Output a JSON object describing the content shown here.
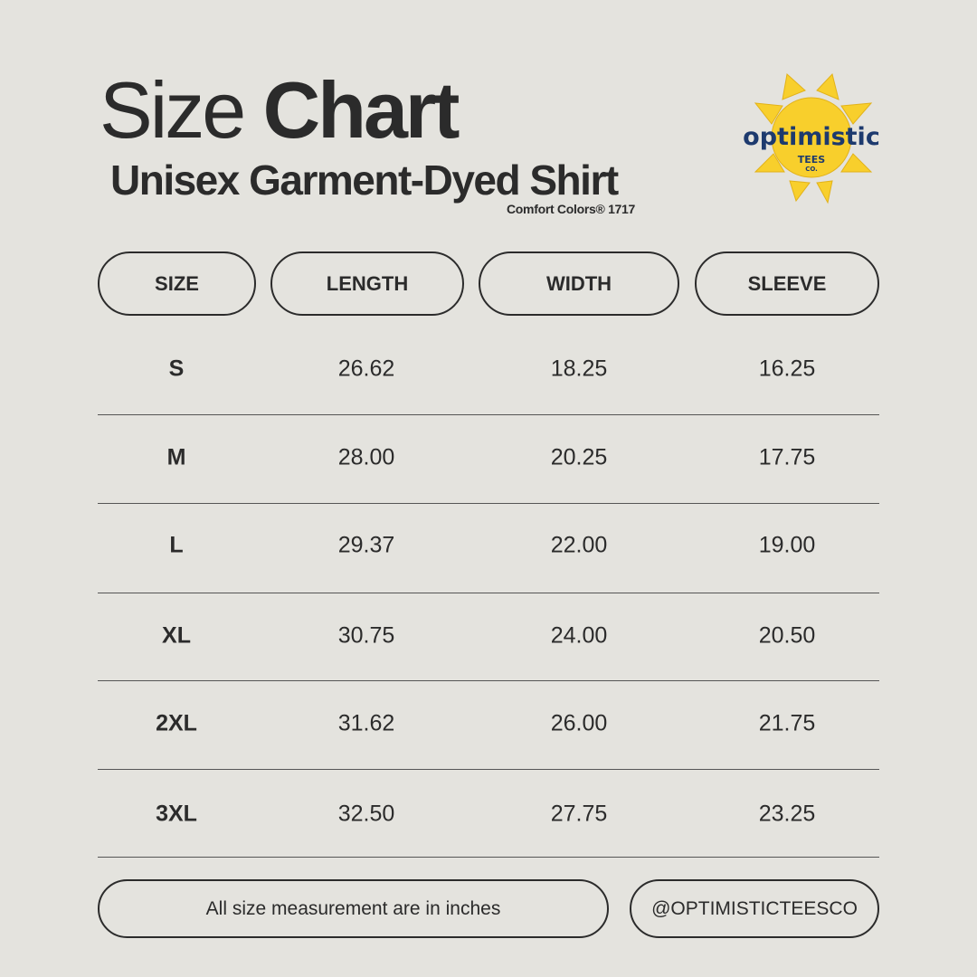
{
  "header": {
    "title_light": "Size",
    "title_bold": "Chart",
    "subtitle": "Unisex Garment-Dyed Shirt",
    "product": "Comfort Colors® 1717"
  },
  "logo": {
    "text": "optimistic",
    "subtext": "TEES",
    "subtext2": "CO.",
    "color_primary": "#1d3a6e",
    "color_sun": "#f8cf2c"
  },
  "table": {
    "columns": [
      "SIZE",
      "LENGTH",
      "WIDTH",
      "SLEEVE"
    ],
    "rows": [
      [
        "S",
        "26.62",
        "18.25",
        "16.25"
      ],
      [
        "M",
        "28.00",
        "20.25",
        "17.75"
      ],
      [
        "L",
        "29.37",
        "22.00",
        "19.00"
      ],
      [
        "XL",
        "30.75",
        "24.00",
        "20.50"
      ],
      [
        "2XL",
        "31.62",
        "26.00",
        "21.75"
      ],
      [
        "3XL",
        "32.50",
        "27.75",
        "23.25"
      ]
    ]
  },
  "footer": {
    "note": "All size measurement are in inches",
    "handle": "@OPTIMISTICTEESCO"
  },
  "colors": {
    "background": "#e4e3de",
    "text": "#2b2b2b"
  }
}
